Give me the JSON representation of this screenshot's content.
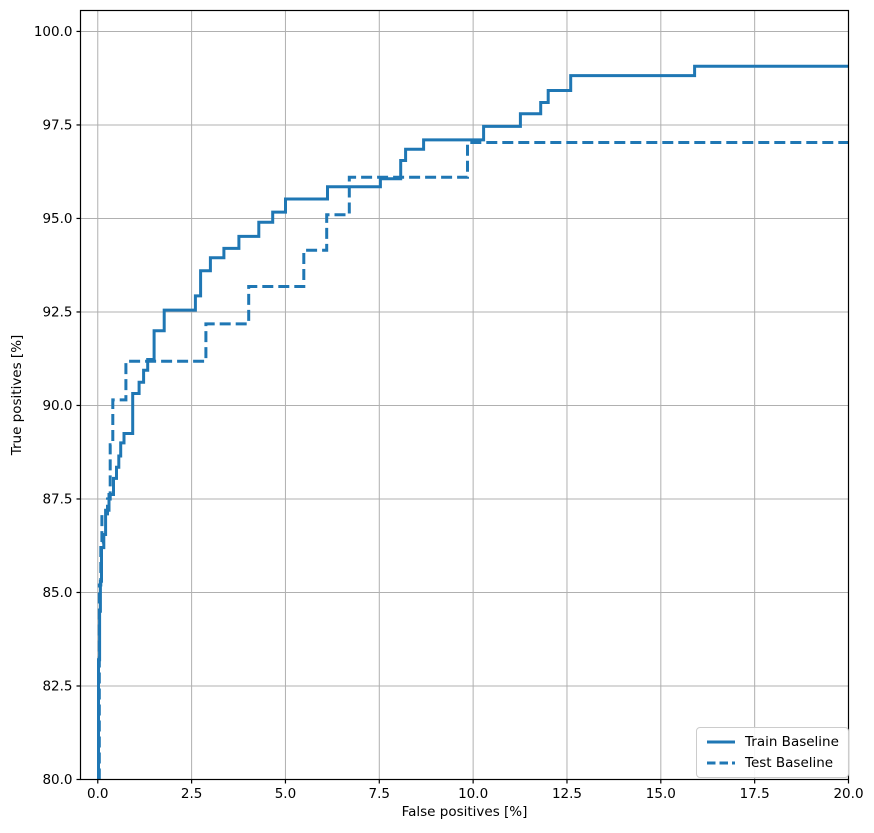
{
  "chart_data": {
    "type": "line",
    "subtype": "step",
    "title": "",
    "xlabel": "False positives [%]",
    "ylabel": "True positives [%]",
    "xlim": [
      -0.46,
      20.0
    ],
    "ylim": [
      80.0,
      100.56
    ],
    "x_ticks": [
      0.0,
      2.5,
      5.0,
      7.5,
      10.0,
      12.5,
      15.0,
      17.5,
      20.0
    ],
    "x_tick_labels": [
      "0.0",
      "2.5",
      "5.0",
      "7.5",
      "10.0",
      "12.5",
      "15.0",
      "17.5",
      "20.0"
    ],
    "y_ticks": [
      80.0,
      82.5,
      85.0,
      87.5,
      90.0,
      92.5,
      95.0,
      97.5,
      100.0
    ],
    "y_tick_labels": [
      "80.0",
      "82.5",
      "85.0",
      "87.5",
      "90.0",
      "92.5",
      "95.0",
      "97.5",
      "100.0"
    ],
    "grid": true,
    "grid_color": "#b0b0b0",
    "spine_color": "#000000",
    "line_color": "#1f77b4",
    "legend": {
      "position": "lower right"
    },
    "series": [
      {
        "name": "Train Baseline",
        "style": "solid",
        "points": [
          [
            0.02,
            80.0
          ],
          [
            0.02,
            83.2
          ],
          [
            0.05,
            83.2
          ],
          [
            0.05,
            84.5
          ],
          [
            0.07,
            84.5
          ],
          [
            0.07,
            85.3
          ],
          [
            0.1,
            85.3
          ],
          [
            0.1,
            86.2
          ],
          [
            0.16,
            86.2
          ],
          [
            0.16,
            86.55
          ],
          [
            0.21,
            86.55
          ],
          [
            0.21,
            87.2
          ],
          [
            0.3,
            87.2
          ],
          [
            0.3,
            87.62
          ],
          [
            0.42,
            87.62
          ],
          [
            0.42,
            88.05
          ],
          [
            0.5,
            88.05
          ],
          [
            0.5,
            88.35
          ],
          [
            0.56,
            88.35
          ],
          [
            0.56,
            88.65
          ],
          [
            0.61,
            88.65
          ],
          [
            0.61,
            89.0
          ],
          [
            0.7,
            89.0
          ],
          [
            0.7,
            89.25
          ],
          [
            0.93,
            89.25
          ],
          [
            0.93,
            90.32
          ],
          [
            1.1,
            90.32
          ],
          [
            1.1,
            90.62
          ],
          [
            1.22,
            90.62
          ],
          [
            1.22,
            90.94
          ],
          [
            1.33,
            90.94
          ],
          [
            1.33,
            91.23
          ],
          [
            1.5,
            91.23
          ],
          [
            1.5,
            92.0
          ],
          [
            1.77,
            92.0
          ],
          [
            1.77,
            92.55
          ],
          [
            2.6,
            92.55
          ],
          [
            2.6,
            92.93
          ],
          [
            2.74,
            92.93
          ],
          [
            2.74,
            93.6
          ],
          [
            3.0,
            93.6
          ],
          [
            3.0,
            93.95
          ],
          [
            3.36,
            93.95
          ],
          [
            3.36,
            94.2
          ],
          [
            3.76,
            94.2
          ],
          [
            3.76,
            94.52
          ],
          [
            4.29,
            94.52
          ],
          [
            4.29,
            94.9
          ],
          [
            4.66,
            94.9
          ],
          [
            4.66,
            95.17
          ],
          [
            5.0,
            95.17
          ],
          [
            5.0,
            95.52
          ],
          [
            6.12,
            95.52
          ],
          [
            6.12,
            95.85
          ],
          [
            7.53,
            95.85
          ],
          [
            7.53,
            96.06
          ],
          [
            8.07,
            96.06
          ],
          [
            8.07,
            96.55
          ],
          [
            8.2,
            96.55
          ],
          [
            8.2,
            96.85
          ],
          [
            8.68,
            96.85
          ],
          [
            8.68,
            97.1
          ],
          [
            10.28,
            97.1
          ],
          [
            10.28,
            97.46
          ],
          [
            11.26,
            97.46
          ],
          [
            11.26,
            97.8
          ],
          [
            11.8,
            97.8
          ],
          [
            11.8,
            98.1
          ],
          [
            12.0,
            98.1
          ],
          [
            12.0,
            98.42
          ],
          [
            12.6,
            98.42
          ],
          [
            12.6,
            98.82
          ],
          [
            15.9,
            98.82
          ],
          [
            15.9,
            99.07
          ],
          [
            20.0,
            99.07
          ]
        ]
      },
      {
        "name": "Test Baseline",
        "style": "dashed",
        "points": [
          [
            0.04,
            80.0
          ],
          [
            0.04,
            85.2
          ],
          [
            0.08,
            85.2
          ],
          [
            0.08,
            86.35
          ],
          [
            0.11,
            86.35
          ],
          [
            0.11,
            87.1
          ],
          [
            0.26,
            87.1
          ],
          [
            0.26,
            87.5
          ],
          [
            0.33,
            87.5
          ],
          [
            0.33,
            88.95
          ],
          [
            0.4,
            88.95
          ],
          [
            0.4,
            90.15
          ],
          [
            0.75,
            90.15
          ],
          [
            0.75,
            91.18
          ],
          [
            2.88,
            91.18
          ],
          [
            2.88,
            92.18
          ],
          [
            4.02,
            92.18
          ],
          [
            4.02,
            93.18
          ],
          [
            5.49,
            93.18
          ],
          [
            5.49,
            94.15
          ],
          [
            6.1,
            94.15
          ],
          [
            6.1,
            95.1
          ],
          [
            6.7,
            95.1
          ],
          [
            6.7,
            96.1
          ],
          [
            9.85,
            96.1
          ],
          [
            9.85,
            97.03
          ],
          [
            20.0,
            97.03
          ]
        ]
      }
    ]
  }
}
